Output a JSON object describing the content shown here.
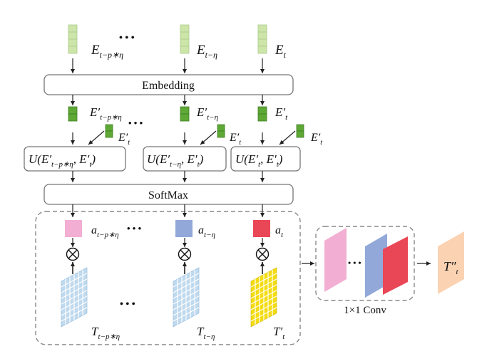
{
  "colors": {
    "embedding_light": "#cde5a8",
    "embedding_dark": "#5ea836",
    "weight_pink": "#f3aed3",
    "weight_blue": "#92a8d8",
    "weight_red": "#ea4756",
    "tensor_grid": "#bfd9ee",
    "tensor_current": "#f4dc12",
    "output": "#fbd3b3",
    "stroke": "#777777"
  },
  "inputs": {
    "e_left": {
      "base": "E",
      "sub": "t−p∗η"
    },
    "e_mid": {
      "base": "E",
      "sub": "t−η"
    },
    "e_right": {
      "base": "E",
      "sub": "t"
    }
  },
  "blocks": {
    "embedding": "Embedding",
    "softmax": "SoftMax",
    "conv": "1×1 Conv"
  },
  "embedded": {
    "left": {
      "base": "E′",
      "sub": "t−p∗η"
    },
    "mid": {
      "base": "E′",
      "sub": "t−η"
    },
    "right": {
      "base": "E′",
      "sub": "t"
    },
    "query": {
      "base": "E′",
      "sub": "t"
    }
  },
  "scores": {
    "left": {
      "prefix": "U(E′",
      "sub": "t−p∗η",
      "mid": ", E′",
      "sub2": "t",
      "suffix": ")"
    },
    "mid": {
      "prefix": "U(E′",
      "sub": "t−η",
      "mid": ", E′",
      "sub2": "t",
      "suffix": ")"
    },
    "right": {
      "prefix": "U(E′",
      "sub": "t",
      "mid": ", E′",
      "sub2": "t",
      "suffix": ")"
    }
  },
  "weights": {
    "left": {
      "base": "a",
      "sub": "t−p∗η"
    },
    "mid": {
      "base": "a",
      "sub": "t−η"
    },
    "right": {
      "base": "a",
      "sub": "t"
    }
  },
  "tensors": {
    "left": {
      "base": "T",
      "sub": "t−p∗η"
    },
    "mid": {
      "base": "T",
      "sub": "t−η"
    },
    "right": {
      "base": "T′",
      "sub": "t"
    }
  },
  "output": {
    "base": "T″",
    "sub": "t"
  },
  "ellipsis": "• • •",
  "multiply": "⊗"
}
